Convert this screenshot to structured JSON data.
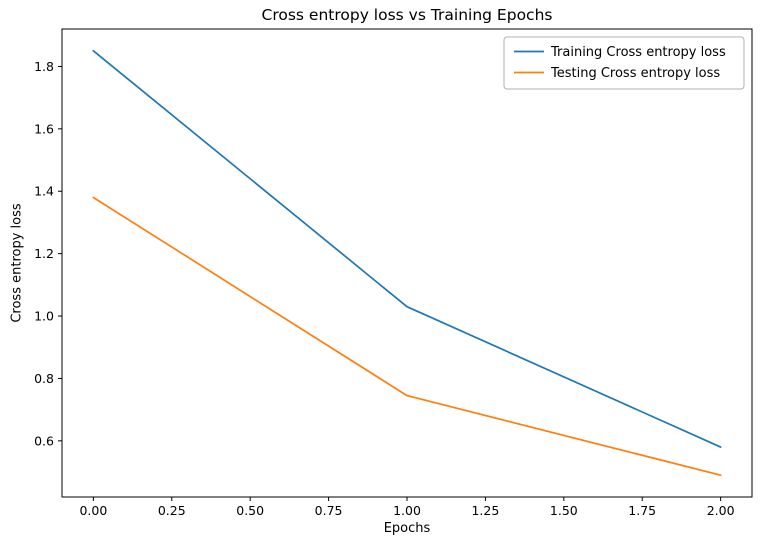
{
  "chart_data": {
    "type": "line",
    "title": "Cross entropy loss vs Training Epochs",
    "xlabel": "Epochs",
    "ylabel": "Cross entropy loss",
    "x": [
      0,
      1,
      2
    ],
    "series": [
      {
        "name": "Training Cross entropy loss",
        "values": [
          1.85,
          1.03,
          0.58
        ],
        "color": "#1f77b4"
      },
      {
        "name": "Testing Cross entropy loss",
        "values": [
          1.38,
          0.745,
          0.49
        ],
        "color": "#ff7f0e"
      }
    ],
    "xlim": [
      -0.1,
      2.1
    ],
    "ylim": [
      0.42,
      1.92
    ],
    "xticks": [
      0.0,
      0.25,
      0.5,
      0.75,
      1.0,
      1.25,
      1.5,
      1.75,
      2.0
    ],
    "xtick_labels": [
      "0.00",
      "0.25",
      "0.50",
      "0.75",
      "1.00",
      "1.25",
      "1.50",
      "1.75",
      "2.00"
    ],
    "yticks": [
      0.6,
      0.8,
      1.0,
      1.2,
      1.4,
      1.6,
      1.8
    ],
    "ytick_labels": [
      "0.6",
      "0.8",
      "1.0",
      "1.2",
      "1.4",
      "1.6",
      "1.8"
    ],
    "legend_position": "upper right",
    "grid": false,
    "colors": {
      "spine": "#000000",
      "tick_label": "#000000",
      "legend_border": "#b0b0b0",
      "background": "#ffffff"
    }
  }
}
